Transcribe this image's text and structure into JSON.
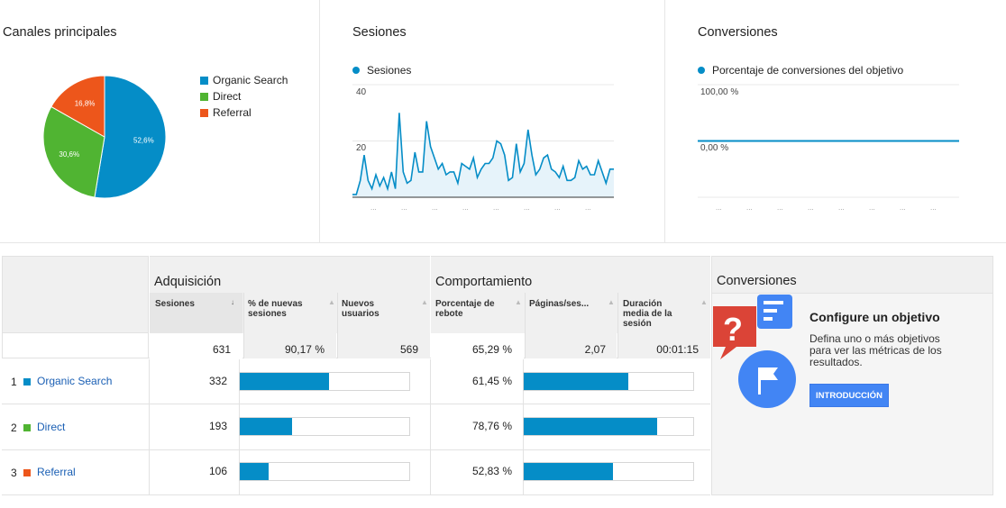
{
  "panels": {
    "channels": {
      "title": "Canales principales",
      "legend": [
        {
          "label": "Organic Search",
          "color": "#058dc7"
        },
        {
          "label": "Direct",
          "color": "#50b432"
        },
        {
          "label": "Referral",
          "color": "#ed561b"
        }
      ]
    },
    "sessions": {
      "title": "Sesiones",
      "legend": "Sesiones",
      "y_labels": [
        "40",
        "20"
      ]
    },
    "conversions": {
      "title": "Conversiones",
      "legend": "Porcentaje de conversiones del objetivo",
      "y_labels": [
        "100,00 %",
        "0,00 %"
      ]
    }
  },
  "chart_data": [
    {
      "type": "pie",
      "categories": [
        "Organic Search",
        "Direct",
        "Referral"
      ],
      "values": [
        52.6,
        30.6,
        16.8
      ],
      "labels": [
        "52,6%",
        "30,6%",
        "16,8%"
      ],
      "colors": [
        "#058dc7",
        "#50b432",
        "#ed561b"
      ],
      "title": "Canales principales",
      "legend": "right"
    },
    {
      "type": "area",
      "title": "Sesiones",
      "series": [
        {
          "name": "Sesiones",
          "values": [
            1,
            1,
            6,
            15,
            6,
            3,
            8,
            4,
            7,
            3,
            9,
            3,
            30,
            9,
            5,
            6,
            16,
            9,
            9,
            27,
            18,
            14,
            10,
            12,
            8,
            9,
            9,
            5,
            12,
            11,
            10,
            14,
            7,
            10,
            12,
            12,
            14,
            20,
            19,
            15,
            6,
            7,
            19,
            9,
            12,
            24,
            15,
            8,
            10,
            14,
            15,
            10,
            9,
            7,
            11,
            6,
            6,
            7,
            13,
            10,
            11,
            8,
            8,
            13,
            9,
            5,
            10,
            10
          ]
        }
      ],
      "ylim": [
        0,
        40
      ],
      "y_ticks": [
        "20",
        "40"
      ],
      "grid": true
    },
    {
      "type": "line",
      "title": "Conversiones",
      "series": [
        {
          "name": "Porcentaje de conversiones del objetivo",
          "values": [
            0,
            0,
            0,
            0,
            0,
            0,
            0,
            0,
            0,
            0,
            0,
            0
          ]
        }
      ],
      "ylim": [
        0,
        100
      ],
      "y_ticks": [
        "0,00 %",
        "100,00 %"
      ],
      "grid": true
    }
  ],
  "table": {
    "groups": {
      "adquisicion": "Adquisición",
      "comportamiento": "Comportamiento",
      "conversiones": "Conversiones"
    },
    "columns": [
      "Sesiones",
      "% de nuevas sesiones",
      "Nuevos usuarios",
      "Porcentaje de rebote",
      "Páginas/ses...",
      "Duración media de la sesión"
    ],
    "totals": [
      "631",
      "90,17 %",
      "569",
      "65,29 %",
      "2,07",
      "00:01:15"
    ],
    "rows": [
      {
        "num": "1",
        "channel": "Organic Search",
        "color": "#058dc7",
        "sessions": "332",
        "sessions_share": 0.526,
        "bounce": "61,45 %",
        "bounce_rate": 0.6145
      },
      {
        "num": "2",
        "channel": "Direct",
        "color": "#50b432",
        "sessions": "193",
        "sessions_share": 0.306,
        "bounce": "78,76 %",
        "bounce_rate": 0.7876
      },
      {
        "num": "3",
        "channel": "Referral",
        "color": "#ed561b",
        "sessions": "106",
        "sessions_share": 0.168,
        "bounce": "52,83 %",
        "bounce_rate": 0.5283
      }
    ]
  },
  "goal_card": {
    "title": "Configure un objetivo",
    "description": "Defina uno o más objetivos para ver las métricas de los resultados.",
    "button": "INTRODUCCIÓN"
  },
  "icons": [
    "sort-arrow-icon",
    "question-mark-icon",
    "flag-icon",
    "list-lines-icon"
  ]
}
